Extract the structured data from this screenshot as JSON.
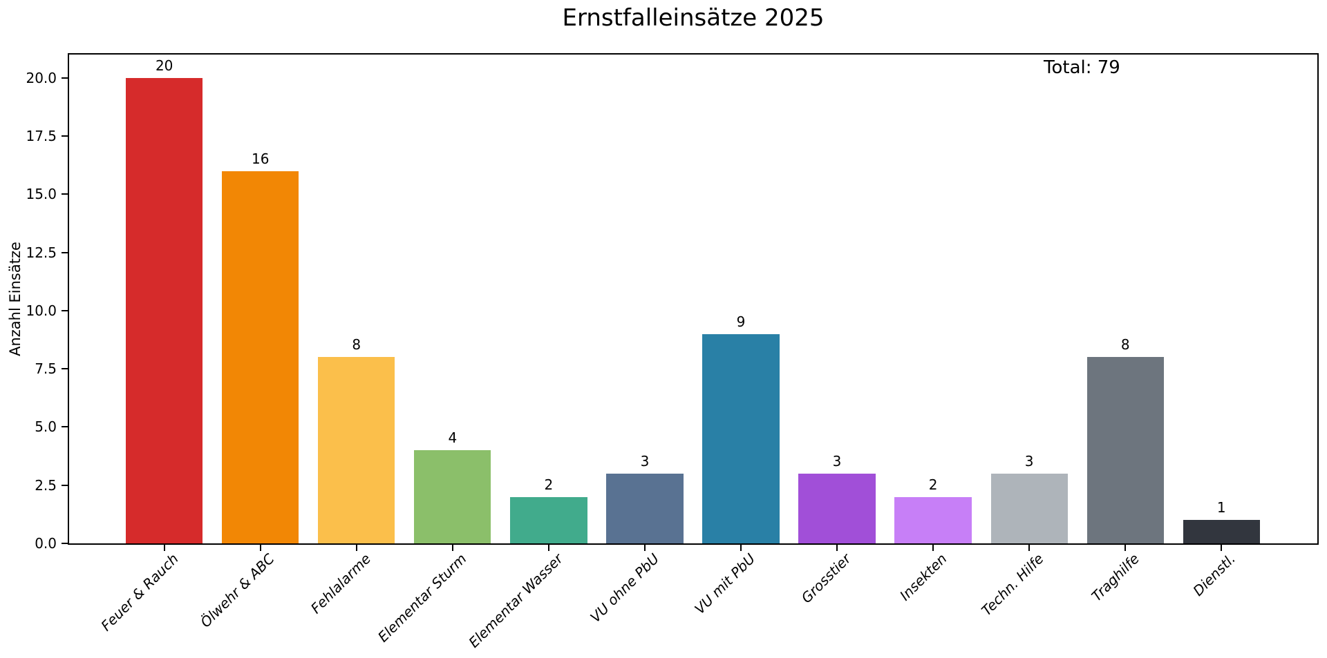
{
  "chart_data": {
    "type": "bar",
    "title": "Ernstfalleinsätze 2025",
    "xlabel": "",
    "ylabel": "Anzahl Einsätze",
    "annotation": "Total: 79",
    "total": 79,
    "ylim": [
      0,
      21
    ],
    "yticks": [
      0.0,
      2.5,
      5.0,
      7.5,
      10.0,
      12.5,
      15.0,
      17.5,
      20.0
    ],
    "ytick_labels": [
      "0.0",
      "2.5",
      "5.0",
      "7.5",
      "10.0",
      "12.5",
      "15.0",
      "17.5",
      "20.0"
    ],
    "grid": false,
    "legend": false,
    "categories": [
      "Feuer & Rauch",
      "Ölwehr & ABC",
      "Fehlalarme",
      "Elementar Sturm",
      "Elementar Wasser",
      "VU ohne PbU",
      "VU mit PbU",
      "Grosstier",
      "Insekten",
      "Techn. Hilfe",
      "Traghilfe",
      "Dienstl."
    ],
    "values": [
      20,
      16,
      8,
      4,
      2,
      3,
      9,
      3,
      2,
      3,
      8,
      1
    ],
    "bar_labels": [
      "20",
      "16",
      "8",
      "4",
      "2",
      "3",
      "9",
      "3",
      "2",
      "3",
      "8",
      "1"
    ],
    "bar_colors": [
      "#d62b2b",
      "#f28705",
      "#fbbf4b",
      "#8bbf6a",
      "#41ab8c",
      "#597292",
      "#2980a6",
      "#a14fd8",
      "#c77ff7",
      "#aeb4ba",
      "#6d757e",
      "#32363e"
    ],
    "axis_color": "#000000",
    "background_color": "#ffffff"
  }
}
